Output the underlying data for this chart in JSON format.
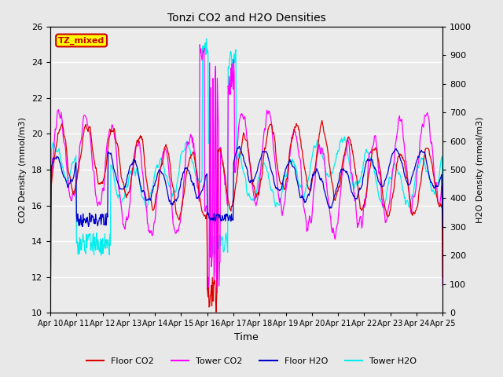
{
  "title": "Tonzi CO2 and H2O Densities",
  "xlabel": "Time",
  "ylabel_left": "CO2 Density (mmol/m3)",
  "ylabel_right": "H2O Density (mmol/m3)",
  "ylim_left": [
    10,
    26
  ],
  "ylim_right": [
    0,
    1000
  ],
  "yticks_left": [
    10,
    12,
    14,
    16,
    18,
    20,
    22,
    24,
    26
  ],
  "yticks_right": [
    0,
    100,
    200,
    300,
    400,
    500,
    600,
    700,
    800,
    900,
    1000
  ],
  "xticklabels": [
    "Apr 10",
    "Apr 11",
    "Apr 12",
    "Apr 13",
    "Apr 14",
    "Apr 15",
    "Apr 16",
    "Apr 17",
    "Apr 18",
    "Apr 19",
    "Apr 20",
    "Apr 21",
    "Apr 22",
    "Apr 23",
    "Apr 24",
    "Apr 25"
  ],
  "annotation_text": "TZ_mixed",
  "annotation_bg": "#ffff00",
  "annotation_edge": "#cc0000",
  "annotation_text_color": "#cc0000",
  "colors": {
    "floor_co2": "#dd0000",
    "tower_co2": "#ff00ff",
    "floor_h2o": "#0000cc",
    "tower_h2o": "#00eeee"
  },
  "legend_labels": [
    "Floor CO2",
    "Tower CO2",
    "Floor H2O",
    "Tower H2O"
  ],
  "background_color": "#e8e8e8",
  "plot_bg": "#ebebeb"
}
